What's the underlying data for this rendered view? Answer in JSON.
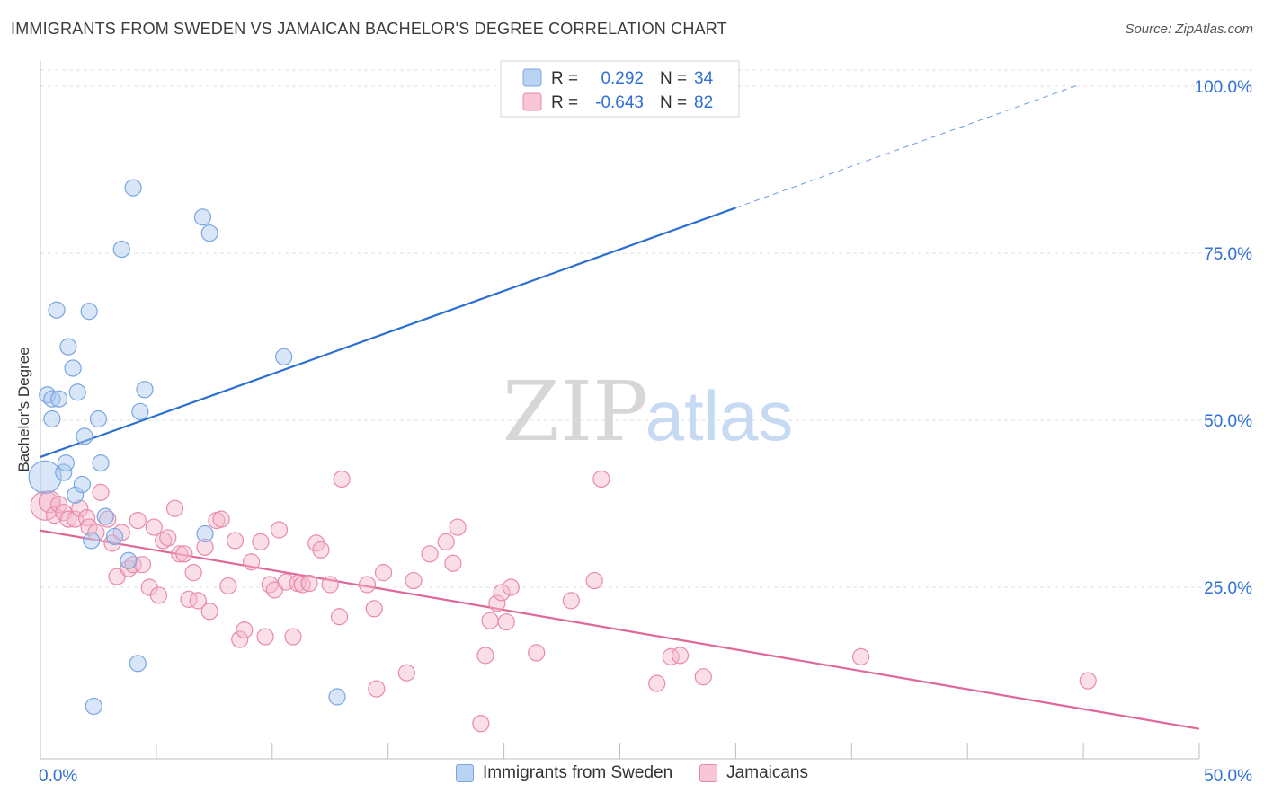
{
  "header": {
    "title": "IMMIGRANTS FROM SWEDEN VS JAMAICAN BACHELOR'S DEGREE CORRELATION CHART",
    "source": "Source: ZipAtlas.com"
  },
  "watermark": {
    "zip": "ZIP",
    "atlas": "atlas"
  },
  "legend_top": {
    "rows": [
      {
        "r_label": "R =",
        "r_value": "0.292",
        "n_label": "N =",
        "n_value": "34"
      },
      {
        "r_label": "R =",
        "r_value": "-0.643",
        "n_label": "N =",
        "n_value": "82"
      }
    ]
  },
  "legend_bottom": {
    "items": [
      {
        "label": "Immigrants from Sweden"
      },
      {
        "label": "Jamaicans"
      }
    ]
  },
  "colors": {
    "blue_fill": "#a9c8f0",
    "blue_stroke": "#7aa6e0",
    "blue_line": "#2a6fd1",
    "pink_fill": "#f5b8cb",
    "pink_stroke": "#e98aa8",
    "pink_line": "#e0679a",
    "value_text": "#2f6fd6",
    "grid": "#e2e2e2"
  },
  "chart_data": {
    "type": "scatter",
    "title": "IMMIGRANTS FROM SWEDEN VS JAMAICAN BACHELOR'S DEGREE CORRELATION CHART",
    "xlabel": "",
    "ylabel": "Bachelor's Degree",
    "xlim": [
      0,
      50
    ],
    "ylim": [
      0,
      103
    ],
    "x_tick_labels": [
      "0.0%",
      "50.0%"
    ],
    "y_ticks": [
      25,
      50,
      75,
      100
    ],
    "y_tick_labels": [
      "25.0%",
      "50.0%",
      "75.0%",
      "100.0%"
    ],
    "grid": true,
    "legend_position": "top-center",
    "series": [
      {
        "name": "Immigrants from Sweden",
        "color": "#a9c8f0",
        "R": 0.292,
        "N": 34,
        "trend": {
          "x0": 0,
          "y0": 44.5,
          "x1": 30,
          "y1": 81.8,
          "dash_to_x": 44.8,
          "dash_to_y": 100.2
        },
        "points": [
          [
            0.2,
            41.5,
            18
          ],
          [
            0.3,
            53.8,
            9
          ],
          [
            0.5,
            50.2,
            9
          ],
          [
            0.5,
            53.2,
            9
          ],
          [
            0.7,
            66.5,
            9
          ],
          [
            0.8,
            53.2,
            9
          ],
          [
            1.0,
            42.2,
            9
          ],
          [
            1.1,
            43.6,
            9
          ],
          [
            1.2,
            61.0,
            9
          ],
          [
            1.4,
            57.8,
            9
          ],
          [
            1.5,
            38.8,
            9
          ],
          [
            1.6,
            54.2,
            9
          ],
          [
            1.8,
            40.4,
            9
          ],
          [
            1.9,
            47.6,
            9
          ],
          [
            2.1,
            66.3,
            9
          ],
          [
            2.2,
            32.0,
            9
          ],
          [
            2.3,
            7.2,
            9
          ],
          [
            2.5,
            50.2,
            9
          ],
          [
            2.6,
            43.6,
            9
          ],
          [
            2.8,
            35.6,
            9
          ],
          [
            3.2,
            32.6,
            9
          ],
          [
            3.5,
            75.6,
            9
          ],
          [
            3.8,
            29.0,
            9
          ],
          [
            4.0,
            84.8,
            9
          ],
          [
            4.2,
            13.6,
            9
          ],
          [
            4.3,
            51.3,
            9
          ],
          [
            4.5,
            54.6,
            9
          ],
          [
            7.0,
            80.4,
            9
          ],
          [
            7.1,
            33.0,
            9
          ],
          [
            7.3,
            78.0,
            9
          ],
          [
            10.5,
            59.5,
            9
          ],
          [
            12.8,
            8.6,
            9
          ],
          [
            26.0,
            100.0,
            9
          ],
          [
            26.3,
            99.5,
            9
          ]
        ]
      },
      {
        "name": "Jamaicans",
        "color": "#f5b8cb",
        "R": -0.643,
        "N": 82,
        "trend": {
          "x0": 0,
          "y0": 33.5,
          "x1": 50,
          "y1": 3.8
        },
        "points": [
          [
            0.2,
            37.2,
            16
          ],
          [
            0.4,
            37.8,
            12
          ],
          [
            0.6,
            35.8,
            9
          ],
          [
            0.8,
            37.4,
            9
          ],
          [
            1.0,
            36.2,
            9
          ],
          [
            1.2,
            35.2,
            9
          ],
          [
            1.5,
            35.2,
            9
          ],
          [
            1.7,
            36.8,
            9
          ],
          [
            2.0,
            35.4,
            9
          ],
          [
            2.1,
            34.0,
            9
          ],
          [
            2.4,
            33.2,
            9
          ],
          [
            2.6,
            39.2,
            9
          ],
          [
            2.9,
            35.2,
            9
          ],
          [
            3.1,
            31.6,
            9
          ],
          [
            3.3,
            26.6,
            9
          ],
          [
            3.5,
            33.2,
            9
          ],
          [
            3.8,
            27.8,
            9
          ],
          [
            4.0,
            28.4,
            9
          ],
          [
            4.2,
            35.0,
            9
          ],
          [
            4.4,
            28.4,
            9
          ],
          [
            4.7,
            25.0,
            9
          ],
          [
            4.9,
            34.0,
            9
          ],
          [
            5.1,
            23.8,
            9
          ],
          [
            5.3,
            32.0,
            9
          ],
          [
            5.5,
            32.4,
            9
          ],
          [
            5.8,
            36.8,
            9
          ],
          [
            6.0,
            30.0,
            9
          ],
          [
            6.2,
            30.0,
            9
          ],
          [
            6.4,
            23.2,
            9
          ],
          [
            6.6,
            27.2,
            9
          ],
          [
            6.8,
            23.0,
            9
          ],
          [
            7.1,
            31.0,
            9
          ],
          [
            7.3,
            21.4,
            9
          ],
          [
            7.6,
            35.0,
            9
          ],
          [
            7.8,
            35.2,
            9
          ],
          [
            8.1,
            25.2,
            9
          ],
          [
            8.4,
            32.0,
            9
          ],
          [
            8.6,
            17.2,
            9
          ],
          [
            8.8,
            18.6,
            9
          ],
          [
            9.1,
            28.8,
            9
          ],
          [
            9.5,
            31.8,
            9
          ],
          [
            9.7,
            17.6,
            9
          ],
          [
            9.9,
            25.4,
            9
          ],
          [
            10.1,
            24.6,
            9
          ],
          [
            10.3,
            33.6,
            9
          ],
          [
            10.6,
            25.8,
            9
          ],
          [
            10.9,
            17.6,
            9
          ],
          [
            11.1,
            25.6,
            9
          ],
          [
            11.3,
            25.4,
            9
          ],
          [
            11.6,
            25.6,
            9
          ],
          [
            11.9,
            31.6,
            9
          ],
          [
            12.1,
            30.6,
            9
          ],
          [
            12.5,
            25.4,
            9
          ],
          [
            12.9,
            20.6,
            9
          ],
          [
            13.0,
            41.2,
            9
          ],
          [
            14.1,
            25.4,
            9
          ],
          [
            14.4,
            21.8,
            9
          ],
          [
            14.5,
            9.8,
            9
          ],
          [
            14.8,
            27.2,
            9
          ],
          [
            15.8,
            12.2,
            9
          ],
          [
            16.1,
            26.0,
            9
          ],
          [
            16.8,
            30.0,
            9
          ],
          [
            17.5,
            31.8,
            9
          ],
          [
            17.8,
            28.6,
            9
          ],
          [
            18.0,
            34.0,
            9
          ],
          [
            19.0,
            4.6,
            9
          ],
          [
            19.2,
            14.8,
            9
          ],
          [
            19.4,
            20.0,
            9
          ],
          [
            19.7,
            22.6,
            9
          ],
          [
            19.9,
            24.2,
            9
          ],
          [
            20.1,
            19.8,
            9
          ],
          [
            20.3,
            25.0,
            9
          ],
          [
            21.4,
            15.2,
            9
          ],
          [
            22.9,
            23.0,
            9
          ],
          [
            23.9,
            26.0,
            9
          ],
          [
            24.2,
            41.2,
            9
          ],
          [
            26.6,
            10.6,
            9
          ],
          [
            27.2,
            14.6,
            9
          ],
          [
            27.6,
            14.8,
            9
          ],
          [
            28.6,
            11.6,
            9
          ],
          [
            35.4,
            14.6,
            9
          ],
          [
            45.2,
            11.0,
            9
          ]
        ]
      }
    ]
  }
}
